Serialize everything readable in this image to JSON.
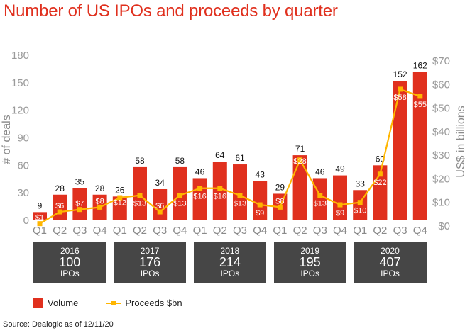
{
  "chart_data": {
    "type": "bar+line",
    "title": "Number of US IPOs and proceeds by quarter",
    "categories": [
      "Q1",
      "Q2",
      "Q3",
      "Q4",
      "Q1",
      "Q2",
      "Q3",
      "Q4",
      "Q1",
      "Q2",
      "Q3",
      "Q4",
      "Q1",
      "Q2",
      "Q3",
      "Q4",
      "Q1",
      "Q2",
      "Q3",
      "Q4"
    ],
    "years": [
      "2016",
      "2017",
      "2018",
      "2019",
      "2020"
    ],
    "series": [
      {
        "name": "Volume",
        "type": "bar",
        "axis": "left",
        "color": "#e0301e",
        "values": [
          9,
          28,
          35,
          28,
          26,
          58,
          34,
          58,
          46,
          64,
          61,
          43,
          29,
          71,
          46,
          49,
          33,
          60,
          152,
          162
        ]
      },
      {
        "name": "Proceeds $bn",
        "type": "line",
        "axis": "right",
        "color": "#ffb600",
        "values": [
          1,
          6,
          7,
          8,
          12,
          13,
          6,
          13,
          16,
          16,
          13,
          9,
          8,
          28,
          13,
          9,
          10,
          22,
          58,
          55
        ]
      }
    ],
    "ylabel": "# of deals",
    "ylim": [
      0,
      180
    ],
    "yticks": [
      "0",
      "30",
      "60",
      "90",
      "120",
      "150",
      "180"
    ],
    "y2label": "US$ in billions",
    "y2lim": [
      0,
      70
    ],
    "y2ticks": [
      "$0",
      "$10",
      "$20",
      "$30",
      "$40",
      "$50",
      "$60",
      "$70"
    ],
    "grid": false,
    "legend": {
      "position": "bottom-left",
      "entries": [
        "Volume",
        "Proceeds $bn"
      ]
    }
  },
  "year_summaries": [
    {
      "year": "2016",
      "count": "100",
      "label": "IPOs"
    },
    {
      "year": "2017",
      "count": "176",
      "label": "IPOs"
    },
    {
      "year": "2018",
      "count": "214",
      "label": "IPOs"
    },
    {
      "year": "2019",
      "count": "195",
      "label": "IPOs"
    },
    {
      "year": "2020",
      "count": "407",
      "label": "IPOs"
    }
  ],
  "source": "Source: Dealogic as of 12/11/20"
}
